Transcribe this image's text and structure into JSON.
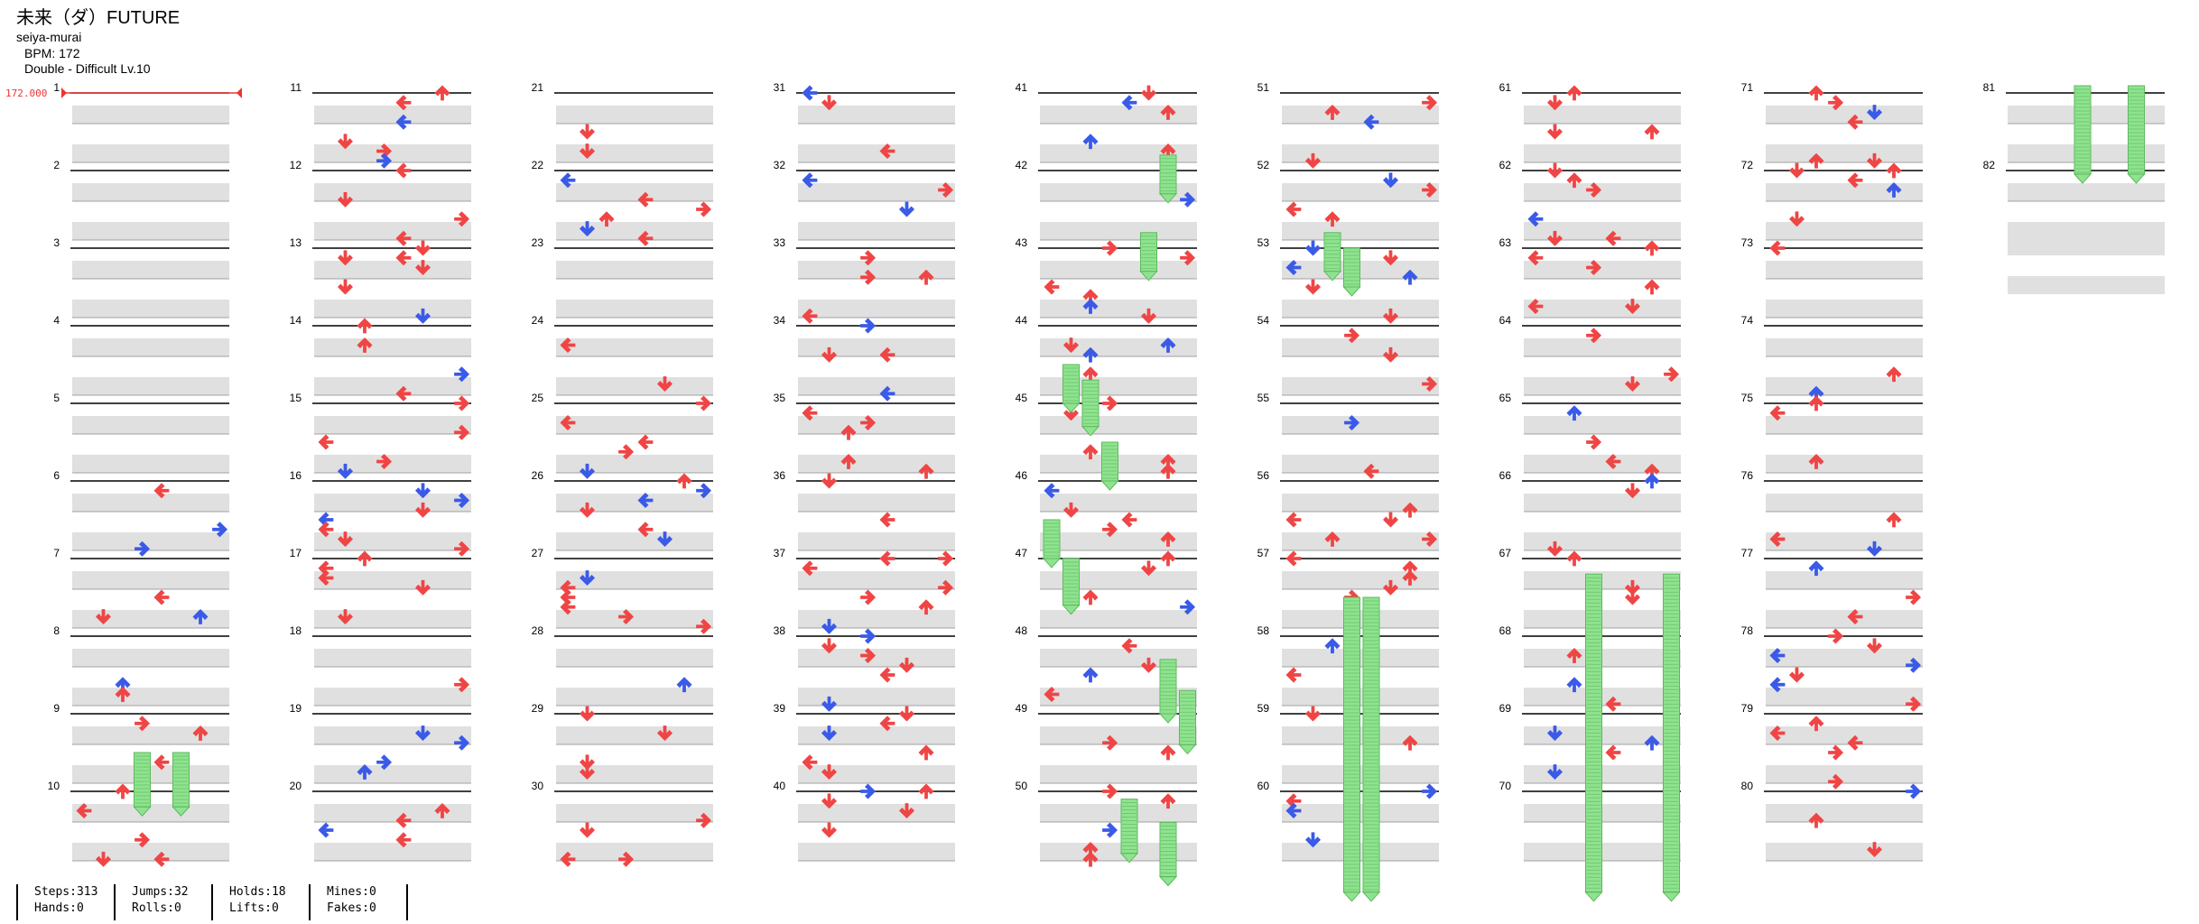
{
  "header": {
    "title": "未来（ダ）FUTURE",
    "artist": "seiya-murai",
    "bpm_text": "BPM: 172",
    "difficulty_text": "Double - Difficult  Lv.10"
  },
  "bpm_marker": "172.000",
  "colors": {
    "red": "#f04545",
    "blue": "#3a5ae8",
    "hold": "#8fe38f",
    "lane": "#e0e0e0"
  },
  "measure_count": 82,
  "stats": {
    "steps": "Steps:313",
    "hands": "Hands:0",
    "jumps": "Jumps:32",
    "rolls": "Rolls:0",
    "holds": "Holds:18",
    "lifts": "Lifts:0",
    "mines": "Mines:0",
    "fakes": "Fakes:0"
  }
}
